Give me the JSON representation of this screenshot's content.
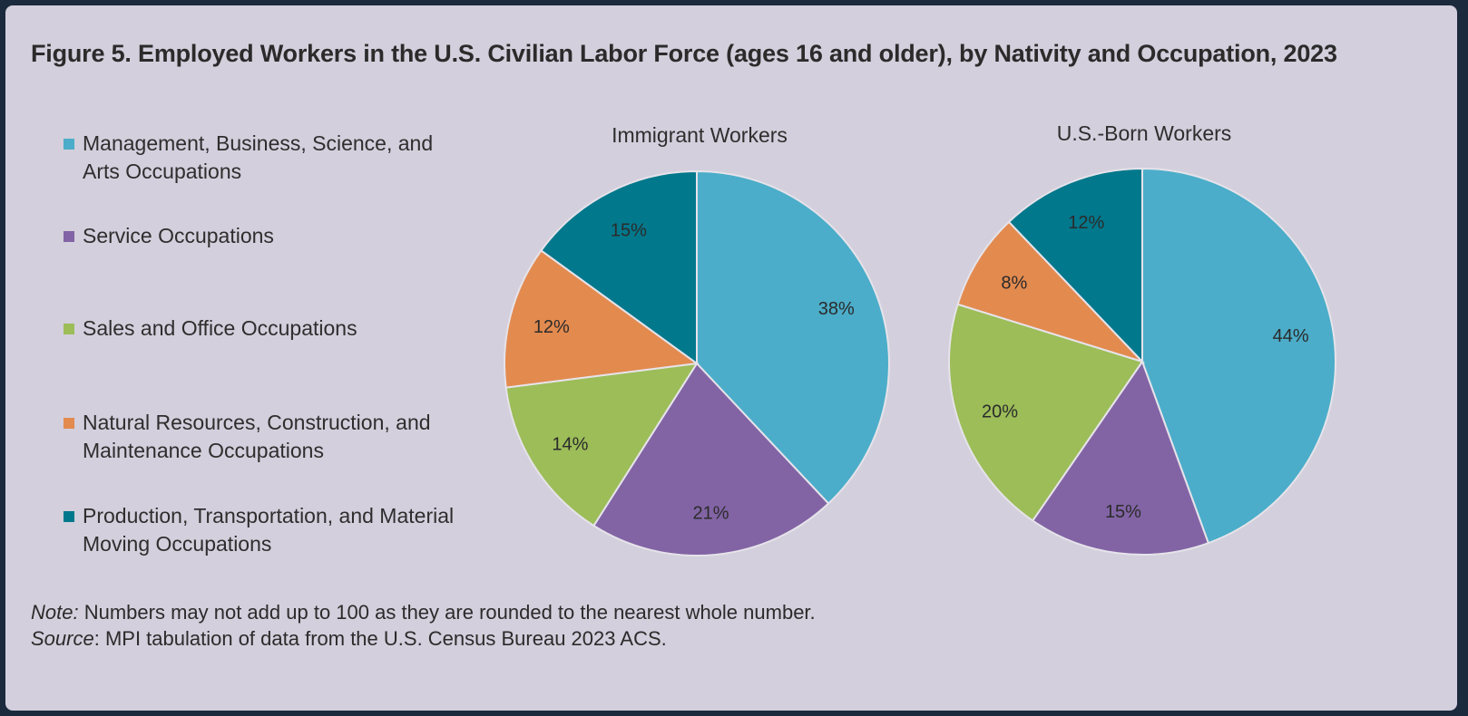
{
  "title": "Figure 5. Employed Workers in the U.S. Civilian Labor Force (ages 16 and older), by Nativity and Occupation, 2023",
  "legend": [
    {
      "label": "Management, Business, Science, and\nArts Occupations",
      "color": "#4badc9"
    },
    {
      "label": "Service Occupations",
      "color": "#8264a5"
    },
    {
      "label": "Sales and Office Occupations",
      "color": "#9cbd58"
    },
    {
      "label": "Natural Resources, Construction, and\nMaintenance Occupations",
      "color": "#e38a4f"
    },
    {
      "label": "Production, Transportation, and Material\nMoving Occupations",
      "color": "#02788c"
    }
  ],
  "chart_data": [
    {
      "type": "pie",
      "title": "Immigrant Workers",
      "categories": [
        "Management, Business, Science, and Arts Occupations",
        "Service Occupations",
        "Sales and Office Occupations",
        "Natural Resources, Construction, and Maintenance Occupations",
        "Production, Transportation, and Material Moving Occupations"
      ],
      "values": [
        38,
        21,
        14,
        12,
        15
      ],
      "labels": [
        "38%",
        "21%",
        "14%",
        "12%",
        "15%"
      ]
    },
    {
      "type": "pie",
      "title": "U.S.-Born Workers",
      "categories": [
        "Management, Business, Science, and Arts Occupations",
        "Service Occupations",
        "Sales and Office Occupations",
        "Natural Resources, Construction, and Maintenance Occupations",
        "Production, Transportation, and Material Moving Occupations"
      ],
      "values": [
        44,
        15,
        20,
        8,
        12
      ],
      "labels": [
        "44%",
        "15%",
        "20%",
        "8%",
        "12%"
      ]
    }
  ],
  "notes": {
    "note_label": "Note:",
    "note_text": " Numbers may not add up to 100 as they are rounded to the nearest whole number.",
    "source_label": "Source",
    "source_text": ": MPI tabulation of data from the U.S. Census Bureau 2023 ACS."
  }
}
